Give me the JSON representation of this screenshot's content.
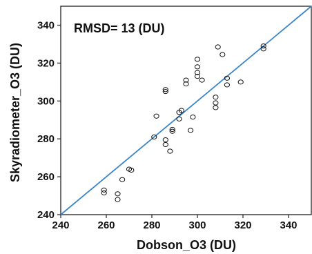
{
  "chart_data": {
    "type": "scatter",
    "title": "",
    "xlabel": "Dobson_O3 (DU)",
    "ylabel": "Skyradiometer_O3 (DU)",
    "xlim": [
      240,
      350
    ],
    "ylim": [
      240,
      350
    ],
    "xticks": [
      240,
      260,
      280,
      300,
      320,
      340
    ],
    "yticks": [
      240,
      260,
      280,
      300,
      320,
      340
    ],
    "annotation": "RMSD= 13 (DU)",
    "grid": false,
    "legend": "none",
    "point_style": "open-circle",
    "point_color": "#111111",
    "line_color": "#3a86c8",
    "series": [
      {
        "points": [
          [
            259,
            253
          ],
          [
            259,
            251.5
          ],
          [
            265,
            251
          ],
          [
            265,
            248
          ],
          [
            267,
            258.5
          ],
          [
            270,
            264
          ],
          [
            271,
            263.5
          ],
          [
            281,
            281
          ],
          [
            282,
            292
          ],
          [
            286,
            305
          ],
          [
            286,
            306
          ],
          [
            286,
            279.5
          ],
          [
            286,
            277
          ],
          [
            288,
            273.5
          ],
          [
            289,
            285
          ],
          [
            289,
            284
          ],
          [
            292,
            294
          ],
          [
            293,
            295
          ],
          [
            292,
            290.5
          ],
          [
            295,
            311
          ],
          [
            295,
            309
          ],
          [
            297,
            284.5
          ],
          [
            298,
            291.5
          ],
          [
            300,
            322
          ],
          [
            300,
            318
          ],
          [
            300,
            315
          ],
          [
            300,
            313
          ],
          [
            302,
            311
          ],
          [
            308,
            302
          ],
          [
            308,
            299
          ],
          [
            308,
            296.5
          ],
          [
            309,
            328.5
          ],
          [
            311,
            324.5
          ],
          [
            313,
            312
          ],
          [
            313,
            308.5
          ],
          [
            319,
            310
          ],
          [
            329,
            329
          ],
          [
            329,
            327.5
          ]
        ]
      },
      {
        "type": "line",
        "points": [
          [
            240,
            240
          ],
          [
            350,
            350
          ]
        ]
      }
    ]
  }
}
